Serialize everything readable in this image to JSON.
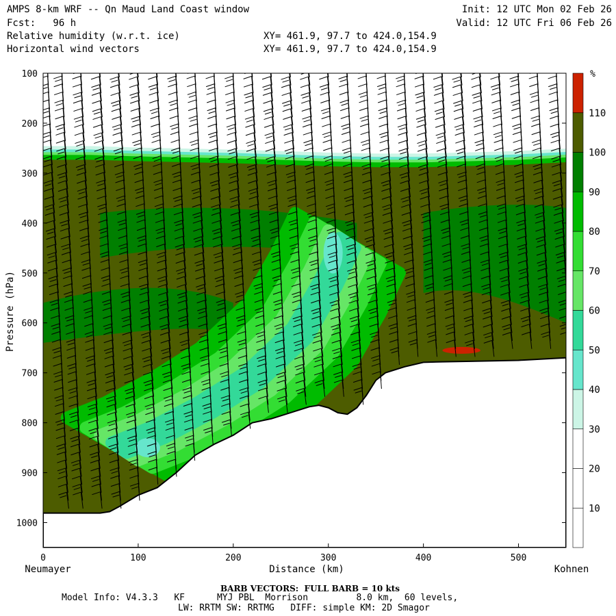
{
  "header": {
    "title": "AMPS 8-km WRF -- Qn Maud Land Coast window",
    "forecast": "Fcst:   96 h",
    "init": "Init: 12 UTC Mon 02 Feb 26",
    "valid": "Valid: 12 UTC Fri 06 Feb 26",
    "field1": "Relative humidity (w.r.t. ice)",
    "field2": "Horizontal wind vectors",
    "xy1": "XY= 461.9, 97.7 to 424.0,154.9",
    "xy2": "XY= 461.9, 97.7 to 424.0,154.9"
  },
  "footer": {
    "barb_note": "BARB VECTORS:  FULL BARB = 10 kts",
    "model_info": "Model Info: V4.3.3   KF      MYJ PBL  Morrison         8.0 km,  60 levels,",
    "model_info2": "LW: RRTM SW: RRTMG   DIFF: simple KM: 2D Smagor"
  },
  "chart_data": {
    "type": "heatmap",
    "title": "Relative humidity (w.r.t. ice) cross-section with horizontal wind vectors",
    "xlabel": "Distance (km)",
    "ylabel": "Pressure (hPa)",
    "xlim": [
      0,
      550
    ],
    "ylim": [
      1050,
      100
    ],
    "x_ticks": [
      0,
      100,
      200,
      300,
      400,
      500
    ],
    "y_ticks": [
      100,
      200,
      300,
      400,
      500,
      600,
      700,
      800,
      900,
      1000
    ],
    "x_start_label": "Neumayer",
    "x_end_label": "Kohnen",
    "colorbar": {
      "unit": "%",
      "levels": [
        10,
        20,
        30,
        40,
        50,
        60,
        70,
        80,
        90,
        100,
        110
      ],
      "colors": [
        "#ffffff",
        "#ffffff",
        "#ffffff",
        "#ccf5e6",
        "#66e6cc",
        "#33d999",
        "#66e666",
        "#33dd33",
        "#00bb00",
        "#007f00",
        "#4d5c00",
        "#cc2200"
      ]
    },
    "terrain": {
      "distance_km": [
        0,
        20,
        45,
        60,
        70,
        80,
        100,
        120,
        140,
        160,
        180,
        200,
        220,
        240,
        260,
        280,
        290,
        300,
        310,
        320,
        330,
        340,
        350,
        360,
        380,
        400,
        420,
        450,
        500,
        550
      ],
      "pressure_hPa": [
        981,
        981,
        981,
        981,
        978,
        968,
        945,
        930,
        900,
        865,
        843,
        825,
        800,
        792,
        780,
        768,
        765,
        770,
        780,
        783,
        770,
        745,
        715,
        700,
        688,
        679,
        678,
        677,
        675,
        670
      ]
    },
    "moisture_top_hPa": [
      265,
      265,
      268,
      270,
      272,
      275,
      278,
      280,
      280,
      275,
      270
    ],
    "moisture_top_distance_km": [
      0,
      50,
      100,
      150,
      200,
      250,
      300,
      350,
      400,
      500,
      550
    ],
    "dry_band": {
      "axis_distance_km": [
        80,
        120,
        170,
        220,
        270,
        300,
        320
      ],
      "axis_pressure_hPa": [
        850,
        820,
        770,
        710,
        620,
        520,
        440
      ],
      "min_rh_percent": 40
    },
    "supersaturation_patch": {
      "distance_km": [
        420,
        460
      ],
      "pressure_hPa": [
        645,
        665
      ],
      "rh_percent": 110
    },
    "wind_barbs": {
      "columns_km": [
        5,
        20,
        40,
        60,
        80,
        100,
        120,
        140,
        160,
        180,
        200,
        220,
        240,
        260,
        280,
        300,
        320,
        340,
        360,
        380,
        400,
        420,
        440,
        460,
        480,
        500,
        520,
        540
      ],
      "full_barb_kts": 10
    }
  }
}
